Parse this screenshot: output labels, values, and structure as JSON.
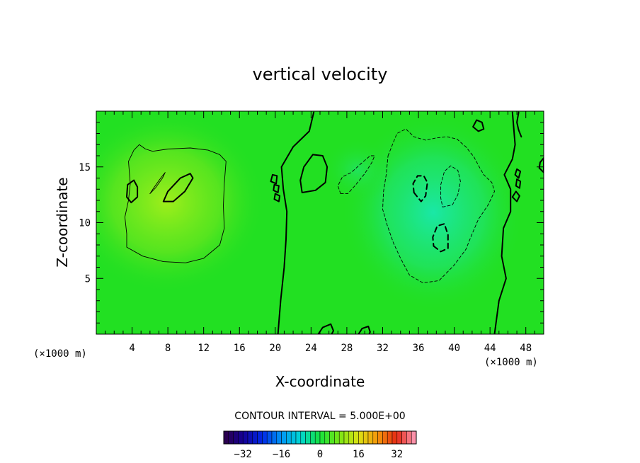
{
  "chart_data": {
    "type": "heatmap",
    "title": "vertical velocity",
    "xlabel": "X-coordinate",
    "ylabel": "Z-coordinate",
    "x_unit": "(×1000 m)",
    "x_unit_right": "(×1000 m)",
    "xlim": [
      0,
      50
    ],
    "ylim": [
      0,
      20
    ],
    "xticks": [
      4,
      8,
      12,
      16,
      20,
      24,
      28,
      32,
      36,
      40,
      44,
      48
    ],
    "yticks": [
      5,
      10,
      15
    ],
    "contour_interval_text": "CONTOUR INTERVAL = 5.000E+00",
    "colorbar": {
      "range": [
        -40,
        40
      ],
      "ticks": [
        -32,
        -16,
        0,
        16,
        32
      ],
      "tick_labels": [
        "−32",
        "−16",
        "0",
        "16",
        "32"
      ]
    },
    "background_color": "#22e022",
    "features": [
      {
        "kind": "updraft",
        "center": [
          9,
          12.5
        ],
        "approx_value": 7
      },
      {
        "kind": "downdraft",
        "center": [
          38,
          10
        ],
        "approx_value": -8
      }
    ],
    "contours": [
      {
        "level": 0,
        "style": "solid-thick",
        "points": [
          [
            20.3,
            0
          ],
          [
            20.6,
            3
          ],
          [
            21.0,
            6
          ],
          [
            21.2,
            8.5
          ],
          [
            21.3,
            11
          ],
          [
            20.9,
            13
          ],
          [
            20.7,
            15
          ],
          [
            22,
            16.8
          ],
          [
            23.8,
            18.2
          ],
          [
            24.3,
            19.9
          ]
        ]
      },
      {
        "level": 0,
        "style": "solid-thick",
        "points": [
          [
            44.5,
            0
          ],
          [
            45.0,
            3
          ],
          [
            45.8,
            5
          ],
          [
            45.3,
            7
          ],
          [
            45.5,
            9.5
          ],
          [
            46.3,
            11
          ],
          [
            46.3,
            13
          ],
          [
            45.6,
            14.3
          ],
          [
            46.5,
            15.7
          ],
          [
            46.8,
            17
          ],
          [
            46.5,
            19.9
          ]
        ]
      },
      {
        "level": 5,
        "style": "solid-thin",
        "points": [
          [
            3.6,
            15.5
          ],
          [
            4.2,
            16.5
          ],
          [
            4.8,
            17.0
          ],
          [
            5.5,
            16.6
          ],
          [
            6.3,
            16.4
          ],
          [
            8.0,
            16.6
          ],
          [
            10.5,
            16.7
          ],
          [
            12.5,
            16.5
          ],
          [
            13.8,
            16.1
          ],
          [
            14.5,
            15.5
          ],
          [
            14.3,
            13.5
          ],
          [
            14.2,
            11.5
          ],
          [
            14.3,
            9.5
          ],
          [
            13.8,
            8.0
          ],
          [
            12.0,
            6.8
          ],
          [
            10,
            6.4
          ],
          [
            7.5,
            6.5
          ],
          [
            5.2,
            7.0
          ],
          [
            3.4,
            7.8
          ],
          [
            3.4,
            9.0
          ],
          [
            3.2,
            10.5
          ],
          [
            3.6,
            12.0
          ],
          [
            3.8,
            13.5
          ],
          [
            3.6,
            15.5
          ]
        ]
      },
      {
        "level": 10,
        "style": "solid-thick",
        "points": [
          [
            7.5,
            11.9
          ],
          [
            8.6,
            11.9
          ],
          [
            9.9,
            12.8
          ],
          [
            10.8,
            14.0
          ],
          [
            10.5,
            14.4
          ],
          [
            9.4,
            14.0
          ],
          [
            8.0,
            12.8
          ],
          [
            7.5,
            11.9
          ]
        ]
      },
      {
        "level": 10,
        "style": "solid-thick",
        "points": [
          [
            3.4,
            12.3
          ],
          [
            3.9,
            11.8
          ],
          [
            4.6,
            12.3
          ],
          [
            4.6,
            13.2
          ],
          [
            4.2,
            13.8
          ],
          [
            3.5,
            13.4
          ],
          [
            3.4,
            12.3
          ]
        ]
      },
      {
        "level": 5,
        "style": "solid-thin",
        "points": [
          [
            6.0,
            12.6
          ],
          [
            6.6,
            13.1
          ],
          [
            7.4,
            14.0
          ],
          [
            7.7,
            14.5
          ],
          [
            7.2,
            14.0
          ],
          [
            6.4,
            13.1
          ],
          [
            6.0,
            12.6
          ]
        ]
      },
      {
        "level": 5,
        "style": "solid-thick",
        "points": [
          [
            23.0,
            12.7
          ],
          [
            24.5,
            12.9
          ],
          [
            25.6,
            13.6
          ],
          [
            25.8,
            15.0
          ],
          [
            25.3,
            16.0
          ],
          [
            24.2,
            16.1
          ],
          [
            23.2,
            15.0
          ],
          [
            22.8,
            13.8
          ],
          [
            23.0,
            12.7
          ]
        ]
      },
      {
        "level": 5,
        "style": "solid-thick",
        "points": [
          [
            19.5,
            13.7
          ],
          [
            20.1,
            13.5
          ],
          [
            20.2,
            14.2
          ],
          [
            19.7,
            14.3
          ],
          [
            19.5,
            13.7
          ]
        ]
      },
      {
        "level": 5,
        "style": "solid-thick",
        "points": [
          [
            19.8,
            12.9
          ],
          [
            20.3,
            12.7
          ],
          [
            20.4,
            13.3
          ],
          [
            19.9,
            13.4
          ],
          [
            19.8,
            12.9
          ]
        ]
      },
      {
        "level": 5,
        "style": "solid-thick",
        "points": [
          [
            19.9,
            12.1
          ],
          [
            20.4,
            11.9
          ],
          [
            20.5,
            12.4
          ],
          [
            20.0,
            12.6
          ],
          [
            19.9,
            12.1
          ]
        ]
      },
      {
        "level": 5,
        "style": "solid-thick",
        "points": [
          [
            24.8,
            0
          ],
          [
            25.3,
            0.6
          ],
          [
            26.2,
            0.9
          ],
          [
            26.5,
            0.3
          ],
          [
            26.3,
            0
          ]
        ]
      },
      {
        "level": 5,
        "style": "solid-thick",
        "points": [
          [
            29.3,
            0
          ],
          [
            29.7,
            0.5
          ],
          [
            30.4,
            0.7
          ],
          [
            30.6,
            0.2
          ],
          [
            30.5,
            0
          ]
        ]
      },
      {
        "level": 5,
        "style": "solid-thick",
        "points": [
          [
            42.1,
            18.6
          ],
          [
            42.7,
            18.2
          ],
          [
            43.3,
            18.4
          ],
          [
            43.1,
            19.0
          ],
          [
            42.5,
            19.2
          ],
          [
            42.1,
            18.6
          ]
        ]
      },
      {
        "level": 5,
        "style": "solid-thick",
        "points": [
          [
            46.8,
            14.3
          ],
          [
            47.2,
            14.0
          ],
          [
            47.4,
            14.6
          ],
          [
            47.0,
            14.8
          ],
          [
            46.8,
            14.3
          ]
        ]
      },
      {
        "level": 5,
        "style": "solid-thick",
        "points": [
          [
            46.9,
            13.3
          ],
          [
            47.3,
            13.1
          ],
          [
            47.4,
            13.7
          ],
          [
            47.0,
            13.9
          ],
          [
            46.9,
            13.3
          ]
        ]
      },
      {
        "level": 5,
        "style": "solid-thick",
        "points": [
          [
            46.5,
            12.3
          ],
          [
            47.0,
            11.9
          ],
          [
            47.3,
            12.4
          ],
          [
            46.9,
            12.8
          ],
          [
            46.5,
            12.3
          ]
        ]
      },
      {
        "level": 5,
        "style": "solid-thick",
        "points": [
          [
            49.5,
            14.9
          ],
          [
            50,
            14.5
          ],
          [
            50,
            15.8
          ],
          [
            49.6,
            15.4
          ],
          [
            49.5,
            14.9
          ]
        ]
      },
      {
        "level": 5,
        "style": "solid-thick",
        "points": [
          [
            47.5,
            17.7
          ],
          [
            47.2,
            18.3
          ],
          [
            47.0,
            19.0
          ],
          [
            47.2,
            19.9
          ]
        ]
      },
      {
        "level": -5,
        "style": "dashed-thin",
        "points": [
          [
            32.6,
            16.0
          ],
          [
            33.2,
            17.2
          ],
          [
            33.6,
            18.0
          ],
          [
            34.6,
            18.4
          ],
          [
            35.5,
            17.7
          ],
          [
            36.8,
            17.4
          ],
          [
            38.0,
            17.6
          ],
          [
            39.2,
            17.7
          ],
          [
            40.3,
            17.5
          ],
          [
            41.3,
            16.8
          ],
          [
            42.2,
            15.9
          ],
          [
            42.8,
            15.0
          ],
          [
            43.3,
            14.3
          ],
          [
            44.2,
            13.6
          ],
          [
            44.5,
            12.8
          ],
          [
            43.8,
            11.6
          ],
          [
            42.7,
            10.3
          ],
          [
            42.0,
            9.0
          ],
          [
            41.3,
            7.6
          ],
          [
            40.0,
            6.2
          ],
          [
            38.3,
            4.8
          ],
          [
            36.5,
            4.6
          ],
          [
            35.0,
            5.3
          ],
          [
            34.0,
            6.8
          ],
          [
            33.2,
            8.2
          ],
          [
            32.5,
            9.8
          ],
          [
            32.0,
            11.2
          ],
          [
            32.1,
            12.8
          ],
          [
            32.4,
            14.3
          ],
          [
            32.6,
            16.0
          ]
        ]
      },
      {
        "level": -5,
        "style": "dashed-thin",
        "points": [
          [
            27.3,
            12.6
          ],
          [
            28.1,
            12.6
          ],
          [
            29.0,
            13.4
          ],
          [
            30.0,
            14.4
          ],
          [
            30.8,
            15.4
          ],
          [
            31.1,
            16.0
          ],
          [
            30.6,
            16.0
          ],
          [
            29.6,
            15.3
          ],
          [
            28.5,
            14.5
          ],
          [
            27.5,
            14.1
          ],
          [
            27.0,
            13.3
          ],
          [
            27.3,
            12.6
          ]
        ]
      },
      {
        "level": -5,
        "style": "dashed-thin",
        "points": [
          [
            38.7,
            11.4
          ],
          [
            39.8,
            11.6
          ],
          [
            40.4,
            12.5
          ],
          [
            40.7,
            13.7
          ],
          [
            40.4,
            14.7
          ],
          [
            39.6,
            15.1
          ],
          [
            38.9,
            14.6
          ],
          [
            38.5,
            13.4
          ],
          [
            38.5,
            12.2
          ],
          [
            38.7,
            11.4
          ]
        ]
      },
      {
        "level": -10,
        "style": "dashed-thick",
        "points": [
          [
            35.5,
            12.7
          ],
          [
            36.3,
            11.9
          ],
          [
            36.8,
            12.4
          ],
          [
            37.0,
            13.6
          ],
          [
            36.6,
            14.2
          ],
          [
            35.9,
            14.2
          ],
          [
            35.4,
            13.5
          ],
          [
            35.5,
            12.7
          ]
        ]
      },
      {
        "level": -10,
        "style": "dashed-thick",
        "points": [
          [
            37.7,
            7.9
          ],
          [
            38.5,
            7.4
          ],
          [
            39.3,
            7.7
          ],
          [
            39.3,
            8.9
          ],
          [
            38.9,
            9.9
          ],
          [
            38.1,
            9.7
          ],
          [
            37.6,
            8.7
          ],
          [
            37.7,
            7.9
          ]
        ]
      }
    ]
  }
}
